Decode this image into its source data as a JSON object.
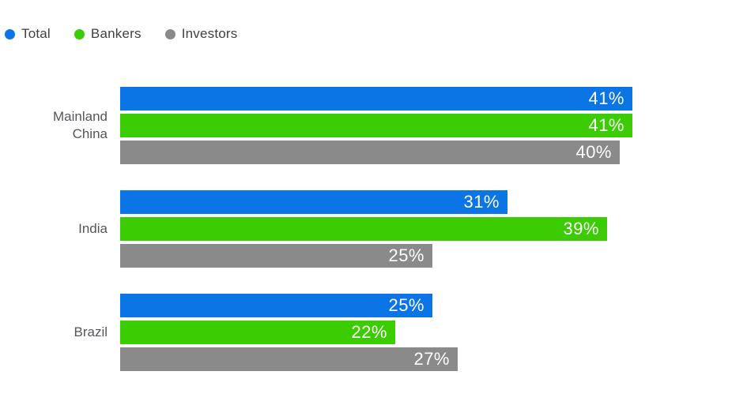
{
  "chart_data": {
    "type": "bar",
    "orientation": "horizontal",
    "title": "",
    "categories": [
      "Mainland China",
      "India",
      "Brazil"
    ],
    "series": [
      {
        "name": "Total",
        "color": "#0b75e6",
        "values": [
          41,
          31,
          25
        ]
      },
      {
        "name": "Bankers",
        "color": "#3ccc04",
        "values": [
          41,
          39,
          22
        ]
      },
      {
        "name": "Investors",
        "color": "#8a8a8a",
        "values": [
          40,
          25,
          27
        ]
      }
    ],
    "value_labels": [
      [
        "41%",
        "31%",
        "25%"
      ],
      [
        "41%",
        "39%",
        "22%"
      ],
      [
        "40%",
        "25%",
        "27%"
      ]
    ],
    "value_suffix": "%",
    "xlim": [
      0,
      41
    ],
    "grid": false,
    "axes_visible": false,
    "legend_position": "top-left",
    "value_label_color": "#ffffff",
    "category_label_color": "#55565b",
    "background_color": "#ffffff"
  }
}
